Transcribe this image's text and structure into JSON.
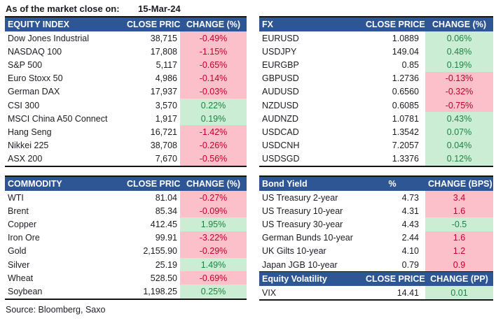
{
  "meta": {
    "as_of_label": "As of the market close on:",
    "as_of_date": "15-Mar-24",
    "source": "Source: Bloomberg, Saxo"
  },
  "colors": {
    "header_bg": "#2E5695",
    "positive_bg": "#CBEDD3",
    "positive_text": "#1E8243",
    "negative_bg": "#FBC0CA",
    "negative_text": "#C00028"
  },
  "tables": {
    "equity": {
      "title": "EQUITY INDEX",
      "col2": "CLOSE PRICE",
      "col3": "CHANGE (%)",
      "rows": [
        {
          "name": "Dow Jones Industrial",
          "price": "38,715",
          "change": "-0.49%",
          "color": "red"
        },
        {
          "name": "NASDAQ 100",
          "price": "17,808",
          "change": "-1.15%",
          "color": "red"
        },
        {
          "name": "S&P 500",
          "price": "5,117",
          "change": "-0.65%",
          "color": "red"
        },
        {
          "name": "Euro Stoxx 50",
          "price": "4,986",
          "change": "-0.14%",
          "color": "red"
        },
        {
          "name": "German DAX",
          "price": "17,937",
          "change": "-0.03%",
          "color": "red"
        },
        {
          "name": "CSI 300",
          "price": "3,570",
          "change": "0.22%",
          "color": "green"
        },
        {
          "name": "MSCI China A50 Connect",
          "price": "1,917",
          "change": "0.19%",
          "color": "green"
        },
        {
          "name": "Hang Seng",
          "price": "16,721",
          "change": "-1.42%",
          "color": "red"
        },
        {
          "name": "Nikkei 225",
          "price": "38,708",
          "change": "-0.26%",
          "color": "red"
        },
        {
          "name": "ASX 200",
          "price": "7,670",
          "change": "-0.56%",
          "color": "red"
        }
      ]
    },
    "fx": {
      "title": "FX",
      "col2": "CLOSE PRICE",
      "col3": "CHANGE (%)",
      "rows": [
        {
          "name": "EURUSD",
          "price": "1.0889",
          "change": "0.06%",
          "color": "green"
        },
        {
          "name": "USDJPY",
          "price": "149.04",
          "change": "0.48%",
          "color": "green"
        },
        {
          "name": "EURGBP",
          "price": "0.85",
          "change": "0.19%",
          "color": "green"
        },
        {
          "name": "GBPUSD",
          "price": "1.2736",
          "change": "-0.13%",
          "color": "red"
        },
        {
          "name": "AUDUSD",
          "price": "0.6560",
          "change": "-0.32%",
          "color": "red"
        },
        {
          "name": "NZDUSD",
          "price": "0.6085",
          "change": "-0.75%",
          "color": "red"
        },
        {
          "name": "AUDNZD",
          "price": "1.0781",
          "change": "0.43%",
          "color": "green"
        },
        {
          "name": "USDCAD",
          "price": "1.3542",
          "change": "0.07%",
          "color": "green"
        },
        {
          "name": "USDCNH",
          "price": "7.2057",
          "change": "0.04%",
          "color": "green"
        },
        {
          "name": "USDSGD",
          "price": "1.3376",
          "change": "0.12%",
          "color": "green"
        }
      ]
    },
    "commodity": {
      "title": "COMMODITY",
      "col2": "CLOSE PRICE",
      "col3": "CHANGE (%)",
      "rows": [
        {
          "name": "WTI",
          "price": "81.04",
          "change": "-0.27%",
          "color": "red"
        },
        {
          "name": "Brent",
          "price": "85.34",
          "change": "-0.09%",
          "color": "red"
        },
        {
          "name": "Copper",
          "price": "412.45",
          "change": "1.95%",
          "color": "green"
        },
        {
          "name": "Iron Ore",
          "price": "99.91",
          "change": "-3.22%",
          "color": "red"
        },
        {
          "name": "Gold",
          "price": "2,155.90",
          "change": "-0.29%",
          "color": "red"
        },
        {
          "name": "Silver",
          "price": "25.19",
          "change": "1.49%",
          "color": "green"
        },
        {
          "name": "Wheat",
          "price": "528.50",
          "change": "-0.69%",
          "color": "red"
        },
        {
          "name": "Soybean",
          "price": "1,198.25",
          "change": "0.25%",
          "color": "green"
        }
      ]
    },
    "bond": {
      "title": "Bond Yield",
      "col2": "%",
      "col3": "CHANGE (BPS)",
      "rows": [
        {
          "name": "US Treasury 2-year",
          "price": "4.73",
          "change": "3.4",
          "color": "red"
        },
        {
          "name": "US Treasury 10-year",
          "price": "4.31",
          "change": "1.6",
          "color": "red"
        },
        {
          "name": "US Treasury 30-year",
          "price": "4.43",
          "change": "-0.5",
          "color": "green"
        },
        {
          "name": "German Bunds 10-year",
          "price": "2.44",
          "change": "1.6",
          "color": "red"
        },
        {
          "name": "UK Gilts 10-year",
          "price": "4.10",
          "change": "1.2",
          "color": "red"
        },
        {
          "name": "Japan JGB 10-year",
          "price": "0.79",
          "change": "0.9",
          "color": "red"
        }
      ]
    },
    "volatility": {
      "title": "Equity Volatility",
      "col2": "CLOSE PRICE",
      "col3": "CHANGE (PP)",
      "rows": [
        {
          "name": "VIX",
          "price": "14.41",
          "change": "0.01",
          "color": "green"
        }
      ]
    }
  }
}
